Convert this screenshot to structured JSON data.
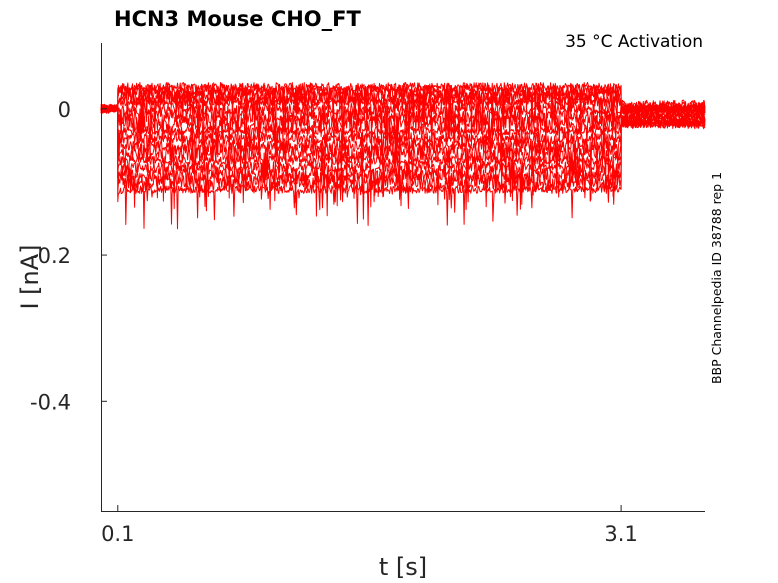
{
  "chart_data": {
    "type": "line",
    "title": "HCN3  Mouse  CHO_FT",
    "annotation": "35 °C  Activation",
    "side_label": "BBP Channelpedia ID 38788 rep 1",
    "xlabel": "t [s]",
    "ylabel": "I [nA]",
    "xlim": [
      0.0,
      3.6
    ],
    "ylim": [
      -0.55,
      0.09
    ],
    "x_ticks": [
      0.1,
      3.1
    ],
    "x_tick_labels": [
      "0.1",
      "3.1"
    ],
    "y_ticks": [
      0,
      -0.2,
      -0.4
    ],
    "y_tick_labels": [
      "0",
      "-0.2",
      "-0.4"
    ],
    "grid": false,
    "legend": "none",
    "trace_color": "#ff0000",
    "pulse": {
      "start": 0.1,
      "end": 3.1
    },
    "traces": [
      {
        "holding": 0.0,
        "step": 0.03,
        "after": 0.0
      },
      {
        "holding": 0.0,
        "step": 0.025,
        "after": 0.0
      },
      {
        "holding": 0.0,
        "step": 0.02,
        "after": 0.0
      },
      {
        "holding": 0.0,
        "step": 0.015,
        "after": 0.005
      },
      {
        "holding": 0.0,
        "step": 0.01,
        "after": 0.005
      },
      {
        "holding": 0.0,
        "step": 0.0,
        "after": 0.0
      },
      {
        "holding": 0.0,
        "step": -0.01,
        "after": 0.0
      },
      {
        "holding": 0.0,
        "step": -0.02,
        "after": -0.005
      },
      {
        "holding": 0.0,
        "step": -0.03,
        "after": -0.005
      },
      {
        "holding": 0.0,
        "step": -0.04,
        "after": -0.01
      },
      {
        "holding": 0.0,
        "step": -0.05,
        "after": -0.01
      },
      {
        "holding": 0.0,
        "step": -0.06,
        "after": -0.015
      },
      {
        "holding": 0.0,
        "step": -0.07,
        "after": -0.015
      },
      {
        "holding": 0.0,
        "step": -0.08,
        "after": -0.02
      },
      {
        "holding": 0.0,
        "step": -0.09,
        "after": -0.02
      },
      {
        "holding": 0.0,
        "step": -0.1,
        "after": -0.02
      },
      {
        "holding": 0.0,
        "step": -0.11,
        "after": -0.02
      }
    ]
  }
}
